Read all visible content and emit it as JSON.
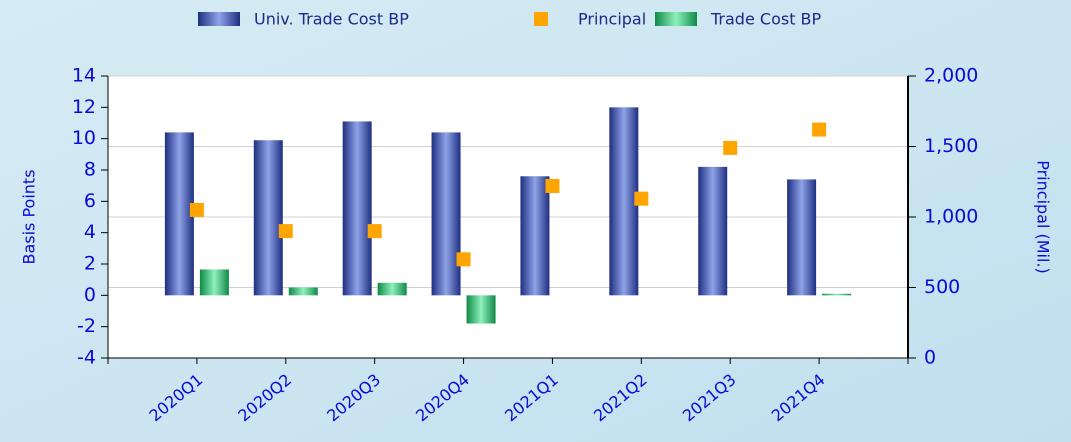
{
  "chart_data": {
    "type": "bar",
    "categories": [
      "2020Q1",
      "2020Q2",
      "2020Q3",
      "2020Q4",
      "2021Q1",
      "2021Q2",
      "2021Q3",
      "2021Q4"
    ],
    "series": [
      {
        "name": "Univ. Trade Cost BP",
        "color": "#3a4fa8",
        "values": [
          10.4,
          9.9,
          11.1,
          10.4,
          7.6,
          12.0,
          8.2,
          7.4
        ]
      },
      {
        "name": "Principal",
        "color": "#ffa500",
        "axis": "y2",
        "values": [
          1050,
          900,
          900,
          700,
          1220,
          1130,
          1490,
          1620
        ]
      },
      {
        "name": "Trade Cost BP",
        "color": "#2fb36a",
        "values": [
          1.65,
          0.5,
          0.8,
          -1.8,
          0,
          0,
          0,
          0.1
        ]
      }
    ],
    "ylabel": "Basis Points",
    "y2label": "Principal (Mil.)",
    "ylim": [
      -4,
      14
    ],
    "yticks": [
      -4,
      -2,
      0,
      2,
      4,
      6,
      8,
      10,
      12,
      14
    ],
    "y2lim": [
      0,
      2000
    ],
    "y2ticks": [
      0,
      500,
      {
        "value": 1000,
        "label": "1,000"
      },
      {
        "value": 1500,
        "label": "1,500"
      },
      {
        "value": 2000,
        "label": "2,000"
      }
    ],
    "grid": true,
    "legend": "top"
  }
}
